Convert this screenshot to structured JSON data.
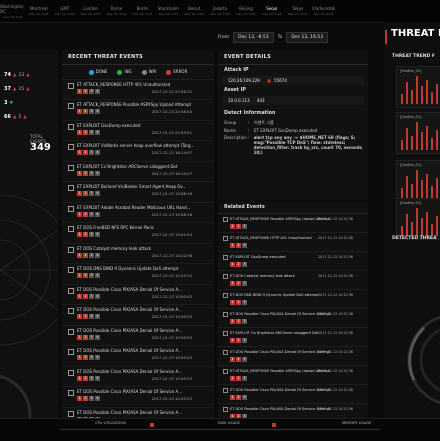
{
  "clocks": [
    {
      "city": "Washington DC",
      "time": "",
      "date": "Dec 14, 5:03"
    },
    {
      "city": "Montreal",
      "time": "",
      "date": "Dec 14, 5:03"
    },
    {
      "city": "GMT",
      "time": "",
      "date": "Dec 14, 5:03"
    },
    {
      "city": "London",
      "time": "",
      "date": "Dec 14, 5:03"
    },
    {
      "city": "Rome",
      "time": "",
      "date": "Dec 14, 5:03"
    },
    {
      "city": "Berlin",
      "time": "",
      "date": "Dec 14, 5:03"
    },
    {
      "city": "Stockholm",
      "time": "",
      "date": "Dec 14, 5:03"
    },
    {
      "city": "Beirut",
      "time": "",
      "date": "Dec 14, 5:03"
    },
    {
      "city": "Jakarta",
      "time": "",
      "date": "Dec 14, 5:03"
    },
    {
      "city": "Beijing",
      "time": "",
      "date": "Dec 14, 5:03"
    },
    {
      "city": "Seoul",
      "time": "",
      "date": "Dec 14, 5:03",
      "active": true
    },
    {
      "city": "Tokyo",
      "time": "",
      "date": "Dec 14, 5:03"
    },
    {
      "city": "Vladivostok",
      "time": "",
      "date": "Dec 14, 5:03"
    }
  ],
  "left": {
    "rows": [
      {
        "v": "74",
        "a": "▲",
        "b": "13",
        "c": "▲"
      },
      {
        "v": "37",
        "a": "▲",
        "b": "15",
        "c": "▲"
      },
      {
        "v": "3",
        "a": "▼",
        "b": "",
        "c": ""
      },
      {
        "v": "66",
        "a": "▲",
        "b": "5",
        "c": "▲"
      }
    ],
    "total_label": "TOTAL EVENTS",
    "total_value": "349"
  },
  "events_panel": {
    "title": "RECENT THREAT EVENTS",
    "legend": [
      {
        "label": "DONE",
        "color": "#2aa7e0"
      },
      {
        "label": "ING",
        "color": "#2fb24a"
      },
      {
        "label": "WAI",
        "color": "#888888"
      },
      {
        "label": "ERROR",
        "color": "#d93b3b"
      }
    ],
    "items": [
      {
        "name": "ET ATTACK_RESPONSE HTTP 401 Unauthorized",
        "ts": "2017-12-13 22:58:22"
      },
      {
        "name": "ET ATTACK_RESPONSE Possible ASPXSpy Upload Attempt",
        "ts": "2017-12-13 22:58:55"
      },
      {
        "name": "ET EXPLOIT GsoDump executed",
        "ts": "2017-12-13 21:53:51"
      },
      {
        "name": "ET EXPLOIT VxWorks server heap overflow attempt (Targ...",
        "ts": "2017-12-13 18:14:07"
      },
      {
        "name": "ET EXPLOIT Cs Brightstor ARCServe caloggerd Dot",
        "ts": "2017-12-13 18:14:07"
      },
      {
        "name": "ET EXPLOIT Borland VisiBroker Smart Agent Heap Ov...",
        "ts": "2017-12-13 15:08:16"
      },
      {
        "name": "ET EXPLOIT Adobe Acrobat Reader Malicious URL Hand...",
        "ts": "2017-12-13 15:08:16"
      },
      {
        "name": "ET DOS FreeBSD NFS RPC Kernel Panic",
        "ts": "2017-12-13 15:02:54"
      },
      {
        "name": "ET DOS Catalyst memory leak attack",
        "ts": "2017-12-13 14:22:36"
      },
      {
        "name": "ET DOS DNS BIND 9 Dynamic Update DoS attempt",
        "ts": "2017-12-13 11:03:12"
      },
      {
        "name": "ET DOS Possible Cisco PIX/ASA Denial Of Service A...",
        "ts": "2017-12-13 10:50:53"
      },
      {
        "name": "ET DOS Possible Cisco PIX/ASA Denial Of Service A...",
        "ts": "2017-12-13 10:50:53"
      },
      {
        "name": "ET DOS Possible Cisco PIX/ASA Denial Of Service A...",
        "ts": "2017-12-13 10:50:53"
      },
      {
        "name": "ET DOS Possible Cisco PIX/ASA Denial Of Service A...",
        "ts": "2017-12-13 10:50:53"
      },
      {
        "name": "ET DOS Possible Cisco PIX/ASA Denial Of Service A...",
        "ts": "2017-12-13 10:50:53"
      },
      {
        "name": "ET DOS Possible Cisco PIX/ASA Denial Of Service A...",
        "ts": "2017-12-13 10:50:53"
      },
      {
        "name": "ET DOS Possible Cisco PIX/ASA Denial Of Service A...",
        "ts": "2017-12-13 10:50:53"
      }
    ]
  },
  "datebar": {
    "from": "From",
    "from_val": "Dec 13, -8:53",
    "to": "To",
    "to_val": "Dec 13, 16:53"
  },
  "details": {
    "title": "EVENT DETAILS",
    "attack_ip_label": "Attack IP",
    "attack_ip": "120.26.109.229",
    "attack_port": "55674",
    "asset_ip_label": "Asset IP",
    "asset_ip": "10.0.0.113",
    "asset_port": "443",
    "detect_label": "Detect Information",
    "group_k": "Group",
    "group_v": "이벤트 그룹",
    "name_k": "Name",
    "name_v": "ET EXPLOIT GsoDump executed",
    "desc_k": "Description",
    "desc_v": "alert tcp any any -> $HOME_NET 69 (flags: S; msg:\"Possible TCP DoS\"; flow: stateless; detection_filter: track by_src, count 70, seconds 10;)"
  },
  "related": {
    "title": "Related Events",
    "items": [
      {
        "name": "ET ATTACK_RESPONSE Possible ASPXSpy Upload Attempt",
        "ts": "2017-12-13 14:22:36"
      },
      {
        "name": "ET ATTACK_RESPONSE HTTP 401 Unauthorized",
        "ts": "2017-12-13 14:22:36"
      },
      {
        "name": "ET EXPLOIT GsoDump executed",
        "ts": "2017-12-13 14:22:36"
      },
      {
        "name": "ET DOS Catalyst memory leak attack",
        "ts": "2017-12-13 14:22:36"
      },
      {
        "name": "ET DOS DNS BIND 9 Dynamic Update DoS attempt",
        "ts": "2017-12-13 14:22:36"
      },
      {
        "name": "ET DOS Possible Cisco PIX/ASA Denial Of Service Attempt",
        "ts": "2017-12-13 14:22:36"
      },
      {
        "name": "ET EXPLOIT Ca Brightstor ARCServe caloggerd Dot",
        "ts": "2017-12-13 14:22:36"
      },
      {
        "name": "ET DOS Possible Cisco PIX/ASA Denial Of Service Attempt",
        "ts": "2017-12-13 14:22:36"
      },
      {
        "name": "ET ATTACK_RESPONSE Possible ASPXSpy Upload Attempt",
        "ts": "2017-12-13 14:22:36"
      },
      {
        "name": "ET DOS Possible Cisco PIX/ASA Denial Of Service Attempt",
        "ts": "2017-12-13 14:22:36"
      },
      {
        "name": "ET DOS Possible Cisco PIX/ASA Denial Of Service Attempt",
        "ts": "2017-12-13 14:22:36"
      }
    ]
  },
  "right": {
    "title": "THREAT H",
    "trend_label": "THREAT TREND F",
    "detected_label": "DETECTED THREA",
    "mini_labels": [
      "[Seattle_01]",
      "[Seattle_01]",
      "[Seattle_01]",
      "[Seattle_01]"
    ]
  },
  "bottom": {
    "cpu": "CPU UTILIZATION",
    "disk": "DISK USAGE",
    "mem": "MEMORY USAGE"
  }
}
